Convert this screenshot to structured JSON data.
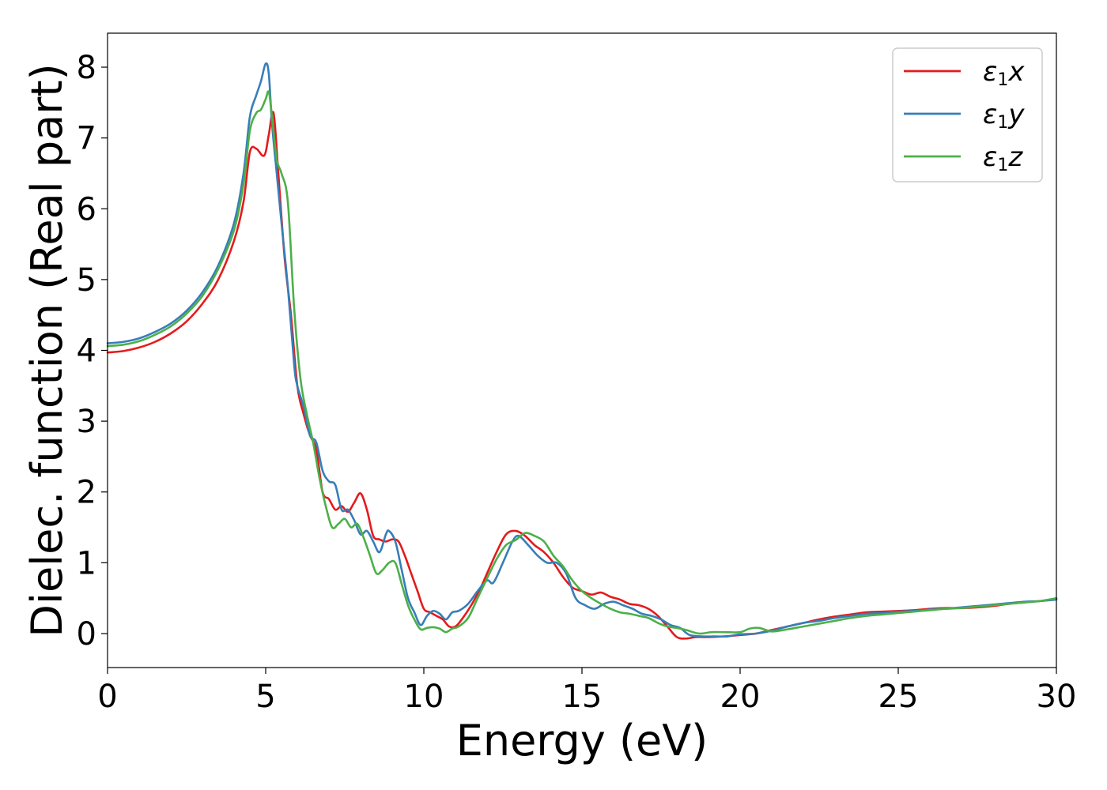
{
  "chart_data": {
    "type": "line",
    "title": "",
    "xlabel": "Energy (eV)",
    "ylabel": "Dielec. function (Real part)",
    "xlim": [
      0,
      30
    ],
    "ylim": [
      -0.48,
      8.48
    ],
    "xticks": [
      0,
      5,
      10,
      15,
      20,
      25,
      30
    ],
    "xtick_labels": [
      "0",
      "5",
      "10",
      "15",
      "20",
      "25",
      "30"
    ],
    "yticks": [
      0,
      1,
      2,
      3,
      4,
      5,
      6,
      7,
      8
    ],
    "ytick_labels": [
      "0",
      "1",
      "2",
      "3",
      "4",
      "5",
      "6",
      "7",
      "8"
    ],
    "grid": false,
    "legend_position": "top-right",
    "series": [
      {
        "name": "ε1x",
        "legend_symbol": "ε",
        "legend_sub": "1",
        "legend_var": "x",
        "color": "#e41a1c",
        "x": [
          0,
          0.5,
          1,
          1.5,
          2,
          2.5,
          3,
          3.5,
          4,
          4.3,
          4.5,
          4.7,
          4.9,
          5.0,
          5.1,
          5.25,
          5.4,
          5.6,
          5.8,
          6.0,
          6.2,
          6.4,
          6.6,
          6.8,
          7.0,
          7.2,
          7.4,
          7.6,
          7.8,
          8.0,
          8.2,
          8.4,
          8.6,
          8.8,
          9.0,
          9.2,
          9.4,
          9.6,
          9.8,
          10.0,
          10.2,
          10.4,
          10.6,
          10.8,
          11.0,
          11.2,
          11.5,
          11.8,
          12.0,
          12.3,
          12.6,
          12.9,
          13.2,
          13.5,
          13.8,
          14.1,
          14.4,
          14.7,
          15.0,
          15.3,
          15.6,
          15.9,
          16.2,
          16.5,
          16.8,
          17.1,
          17.4,
          17.7,
          18.0,
          18.3,
          18.6,
          19.0,
          19.5,
          20.0,
          20.5,
          21.0,
          21.5,
          22.0,
          22.5,
          23.0,
          23.5,
          24.0,
          24.5,
          25.0,
          25.5,
          26.0,
          26.5,
          27.0,
          27.5,
          28.0,
          28.5,
          29.0,
          29.5,
          30.0
        ],
        "y": [
          3.97,
          3.99,
          4.04,
          4.12,
          4.24,
          4.41,
          4.66,
          5.0,
          5.55,
          6.1,
          6.8,
          6.85,
          6.75,
          6.8,
          7.05,
          7.35,
          6.5,
          5.3,
          4.5,
          3.5,
          3.1,
          2.8,
          2.6,
          2.0,
          1.9,
          1.75,
          1.8,
          1.72,
          1.85,
          1.98,
          1.75,
          1.38,
          1.33,
          1.3,
          1.33,
          1.3,
          1.1,
          0.85,
          0.6,
          0.35,
          0.3,
          0.25,
          0.2,
          0.1,
          0.1,
          0.2,
          0.4,
          0.65,
          0.85,
          1.15,
          1.4,
          1.45,
          1.38,
          1.25,
          1.15,
          1.0,
          0.8,
          0.65,
          0.6,
          0.55,
          0.58,
          0.52,
          0.48,
          0.42,
          0.4,
          0.35,
          0.25,
          0.1,
          -0.05,
          -0.07,
          -0.05,
          -0.05,
          -0.04,
          -0.02,
          0.0,
          0.05,
          0.1,
          0.15,
          0.2,
          0.24,
          0.27,
          0.3,
          0.31,
          0.32,
          0.33,
          0.35,
          0.36,
          0.36,
          0.37,
          0.39,
          0.42,
          0.44,
          0.46,
          0.49
        ]
      },
      {
        "name": "ε1y",
        "legend_symbol": "ε",
        "legend_sub": "1",
        "legend_var": "y",
        "color": "#377eb8",
        "x": [
          0,
          0.5,
          1,
          1.5,
          2,
          2.5,
          3,
          3.5,
          4,
          4.3,
          4.5,
          4.7,
          4.85,
          5.0,
          5.1,
          5.2,
          5.35,
          5.5,
          5.7,
          5.9,
          6.0,
          6.2,
          6.4,
          6.6,
          6.8,
          7.0,
          7.2,
          7.4,
          7.6,
          7.8,
          8.0,
          8.2,
          8.4,
          8.6,
          8.8,
          8.9,
          9.1,
          9.3,
          9.5,
          9.7,
          9.9,
          10.1,
          10.3,
          10.5,
          10.7,
          10.9,
          11.1,
          11.4,
          11.7,
          12.0,
          12.2,
          12.5,
          12.8,
          13.0,
          13.3,
          13.6,
          13.9,
          14.2,
          14.5,
          14.8,
          15.1,
          15.4,
          15.7,
          16.0,
          16.3,
          16.6,
          16.9,
          17.2,
          17.5,
          17.8,
          18.1,
          18.4,
          18.8,
          19.2,
          19.6,
          20.0,
          20.5,
          21.0,
          21.5,
          22.0,
          22.5,
          23.0,
          23.5,
          24.0,
          24.5,
          25.0,
          25.5,
          26.0,
          26.5,
          27.0,
          27.5,
          28.0,
          28.5,
          29.0,
          29.5,
          30.0
        ],
        "y": [
          4.1,
          4.12,
          4.17,
          4.26,
          4.38,
          4.56,
          4.82,
          5.2,
          5.8,
          6.5,
          7.3,
          7.6,
          7.8,
          8.05,
          7.9,
          7.2,
          6.5,
          5.8,
          4.9,
          3.8,
          3.5,
          3.2,
          2.8,
          2.7,
          2.3,
          2.15,
          2.1,
          1.75,
          1.75,
          1.6,
          1.4,
          1.45,
          1.3,
          1.15,
          1.4,
          1.45,
          1.3,
          0.9,
          0.5,
          0.3,
          0.12,
          0.25,
          0.32,
          0.28,
          0.2,
          0.3,
          0.32,
          0.42,
          0.6,
          0.75,
          0.72,
          1.0,
          1.3,
          1.38,
          1.25,
          1.1,
          1.0,
          1.0,
          0.85,
          0.5,
          0.4,
          0.35,
          0.42,
          0.45,
          0.4,
          0.35,
          0.28,
          0.25,
          0.2,
          0.12,
          0.08,
          -0.02,
          -0.04,
          -0.04,
          -0.04,
          -0.01,
          0.0,
          0.04,
          0.1,
          0.15,
          0.18,
          0.22,
          0.25,
          0.28,
          0.29,
          0.31,
          0.32,
          0.34,
          0.35,
          0.37,
          0.39,
          0.41,
          0.43,
          0.45,
          0.46,
          0.48
        ]
      },
      {
        "name": "ε1z",
        "legend_symbol": "ε",
        "legend_sub": "1",
        "legend_var": "z",
        "color": "#4daf4a",
        "x": [
          0,
          0.5,
          1,
          1.5,
          2,
          2.5,
          3,
          3.5,
          4,
          4.3,
          4.5,
          4.7,
          4.85,
          5.0,
          5.1,
          5.2,
          5.35,
          5.5,
          5.7,
          5.9,
          6.1,
          6.3,
          6.5,
          6.7,
          6.9,
          7.1,
          7.3,
          7.5,
          7.7,
          7.9,
          8.1,
          8.3,
          8.5,
          8.7,
          8.9,
          9.1,
          9.3,
          9.5,
          9.7,
          9.9,
          10.1,
          10.3,
          10.5,
          10.7,
          10.9,
          11.1,
          11.4,
          11.7,
          12.0,
          12.3,
          12.6,
          12.9,
          13.2,
          13.5,
          13.8,
          14.1,
          14.4,
          14.7,
          15.0,
          15.3,
          15.6,
          15.9,
          16.2,
          16.5,
          16.8,
          17.1,
          17.4,
          17.7,
          18.0,
          18.3,
          18.7,
          19.1,
          19.5,
          20.0,
          20.3,
          20.6,
          21.0,
          21.5,
          22.0,
          22.5,
          23.0,
          23.5,
          24.0,
          24.5,
          25.0,
          25.5,
          26.0,
          26.5,
          27.0,
          27.5,
          28.0,
          28.5,
          29.0,
          29.5,
          30.0
        ],
        "y": [
          4.06,
          4.08,
          4.13,
          4.22,
          4.34,
          4.52,
          4.77,
          5.15,
          5.7,
          6.35,
          7.1,
          7.35,
          7.4,
          7.55,
          7.65,
          7.3,
          6.7,
          6.5,
          6.1,
          4.6,
          3.6,
          3.1,
          2.7,
          2.2,
          1.8,
          1.5,
          1.55,
          1.62,
          1.5,
          1.55,
          1.35,
          1.1,
          0.85,
          0.9,
          1.0,
          1.0,
          0.7,
          0.4,
          0.2,
          0.06,
          0.08,
          0.09,
          0.07,
          0.02,
          0.07,
          0.1,
          0.22,
          0.5,
          0.78,
          1.05,
          1.25,
          1.32,
          1.42,
          1.38,
          1.3,
          1.1,
          0.95,
          0.75,
          0.6,
          0.5,
          0.42,
          0.35,
          0.3,
          0.28,
          0.25,
          0.22,
          0.15,
          0.1,
          0.08,
          0.05,
          0.0,
          0.02,
          0.02,
          0.02,
          0.07,
          0.08,
          0.03,
          0.06,
          0.1,
          0.14,
          0.18,
          0.22,
          0.25,
          0.27,
          0.29,
          0.31,
          0.33,
          0.35,
          0.36,
          0.38,
          0.4,
          0.42,
          0.44,
          0.46,
          0.5
        ]
      }
    ]
  }
}
